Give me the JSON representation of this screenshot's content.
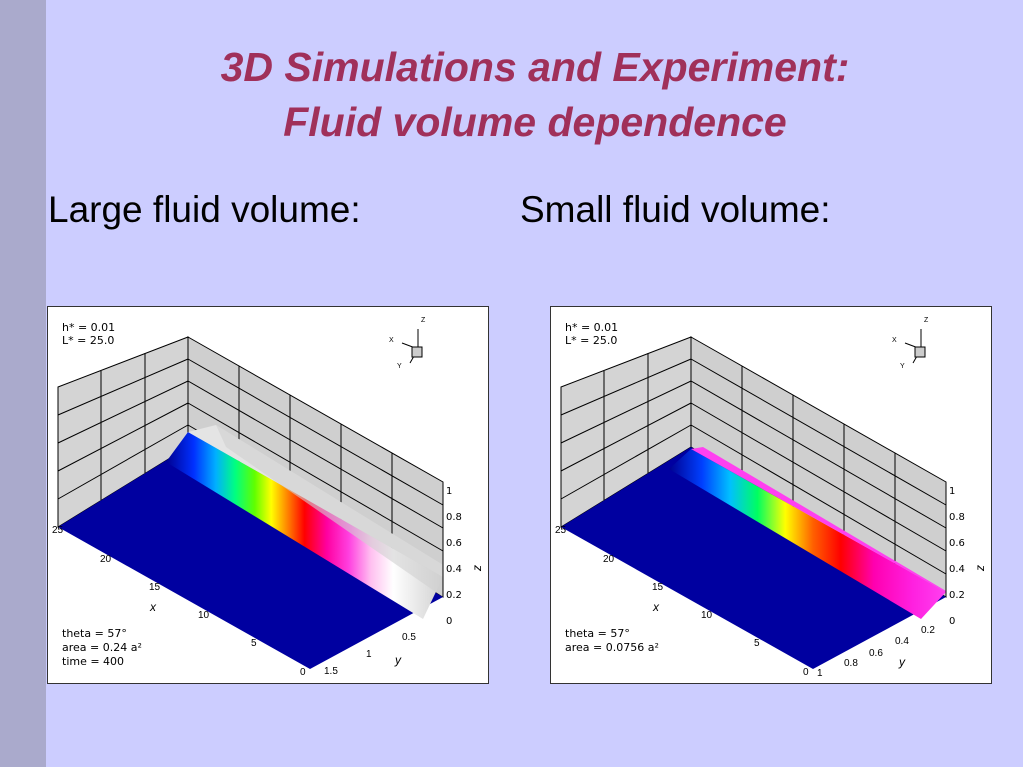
{
  "slide": {
    "title_line1": "3D Simulations and Experiment:",
    "title_line2": "Fluid volume dependence",
    "caption_left": "Large fluid volume:",
    "caption_right": "Small fluid volume:"
  },
  "panels": [
    {
      "info_top": [
        "h* = 0.01",
        "L* = 25.0"
      ],
      "info_bottom": [
        "theta = 57°",
        "area = 0.24 a²",
        "time = 400"
      ],
      "axis_labels": {
        "x": "x",
        "y": "y",
        "z": "z"
      },
      "x_ticks": [
        "0",
        "5",
        "10",
        "15",
        "20",
        "25"
      ],
      "y_ticks": [
        "0.5",
        "1",
        "1.5"
      ],
      "z_ticks": [
        "0",
        "0.2",
        "0.4",
        "0.6",
        "0.8",
        "1"
      ],
      "triad": {
        "z": "Z",
        "x": "X",
        "y": "Y"
      }
    },
    {
      "info_top": [
        "h* = 0.01",
        "L* = 25.0"
      ],
      "info_bottom": [
        "theta = 57°",
        "area = 0.0756 a²"
      ],
      "axis_labels": {
        "x": "x",
        "y": "y",
        "z": "z"
      },
      "x_ticks": [
        "0",
        "5",
        "10",
        "15",
        "20",
        "25"
      ],
      "y_ticks": [
        "0.2",
        "0.4",
        "0.6",
        "0.8",
        "1"
      ],
      "z_ticks": [
        "0",
        "0.2",
        "0.4",
        "0.6",
        "0.8",
        "1"
      ],
      "triad": {
        "z": "Z",
        "x": "X",
        "y": "Y"
      }
    }
  ],
  "colors": {
    "background": "#cccdff",
    "title": "#a0305a",
    "floor": "#0000a0",
    "wall": "#d8d8d8"
  }
}
